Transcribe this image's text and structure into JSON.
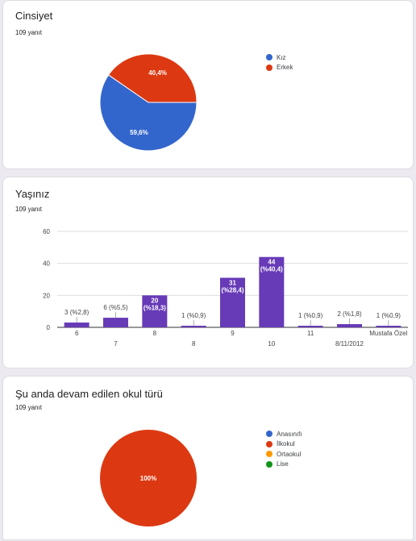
{
  "colors": {
    "blue": "#3366cc",
    "red": "#dc3912",
    "orange": "#ff9900",
    "green": "#109618",
    "purple": "#673ab7"
  },
  "questions": [
    {
      "title": "Cinsiyet",
      "count": "109 yanıt",
      "legend": [
        {
          "label": "Kız",
          "color": "#3366cc"
        },
        {
          "label": "Erkek",
          "color": "#dc3912"
        }
      ]
    },
    {
      "title": "Yaşınız",
      "count": "109 yanıt"
    },
    {
      "title": "Şu anda devam edilen okul türü",
      "count": "109 yanıt",
      "legend": [
        {
          "label": "Anasınıfı",
          "color": "#3366cc"
        },
        {
          "label": "İlkokul",
          "color": "#dc3912"
        },
        {
          "label": "Ortaokul",
          "color": "#ff9900"
        },
        {
          "label": "Lise",
          "color": "#109618"
        }
      ]
    }
  ],
  "chart_data": [
    {
      "type": "pie",
      "labels": [
        "Kız",
        "Erkek"
      ],
      "values": [
        59.6,
        40.4
      ],
      "slice_labels": [
        "59,6%",
        "40,4%"
      ],
      "colors": [
        "#3366cc",
        "#dc3912"
      ],
      "legend": "right"
    },
    {
      "type": "bar",
      "categories": [
        "6",
        "7",
        "8",
        "8",
        "9",
        "10",
        "11",
        "8/11/2012",
        "Mustafa Özel"
      ],
      "values": [
        3,
        6,
        20,
        1,
        31,
        44,
        1,
        2,
        1
      ],
      "value_labels": [
        [
          "3 (%2,8)"
        ],
        [
          "6 (%5,5)"
        ],
        [
          "20",
          "(%18,3)"
        ],
        [
          "1 (%0,9)"
        ],
        [
          "31",
          "(%28,4)"
        ],
        [
          "44",
          "(%40,4)"
        ],
        [
          "1 (%0,9)"
        ],
        [
          "2 (%1,8)"
        ],
        [
          "1 (%0,9)"
        ]
      ],
      "label_inside": [
        false,
        false,
        true,
        false,
        true,
        true,
        false,
        false,
        false
      ],
      "yticks": [
        "0",
        "20",
        "40",
        "60"
      ],
      "ylim": [
        0,
        60
      ],
      "color": "#673ab7",
      "grid": true
    },
    {
      "type": "pie",
      "labels": [
        "Anasınıfı",
        "İlkokul",
        "Ortaokul",
        "Lise"
      ],
      "values": [
        0,
        100,
        0,
        0
      ],
      "slice_labels": [
        "100%"
      ],
      "colors": [
        "#3366cc",
        "#dc3912",
        "#ff9900",
        "#109618"
      ],
      "legend": "right"
    }
  ]
}
